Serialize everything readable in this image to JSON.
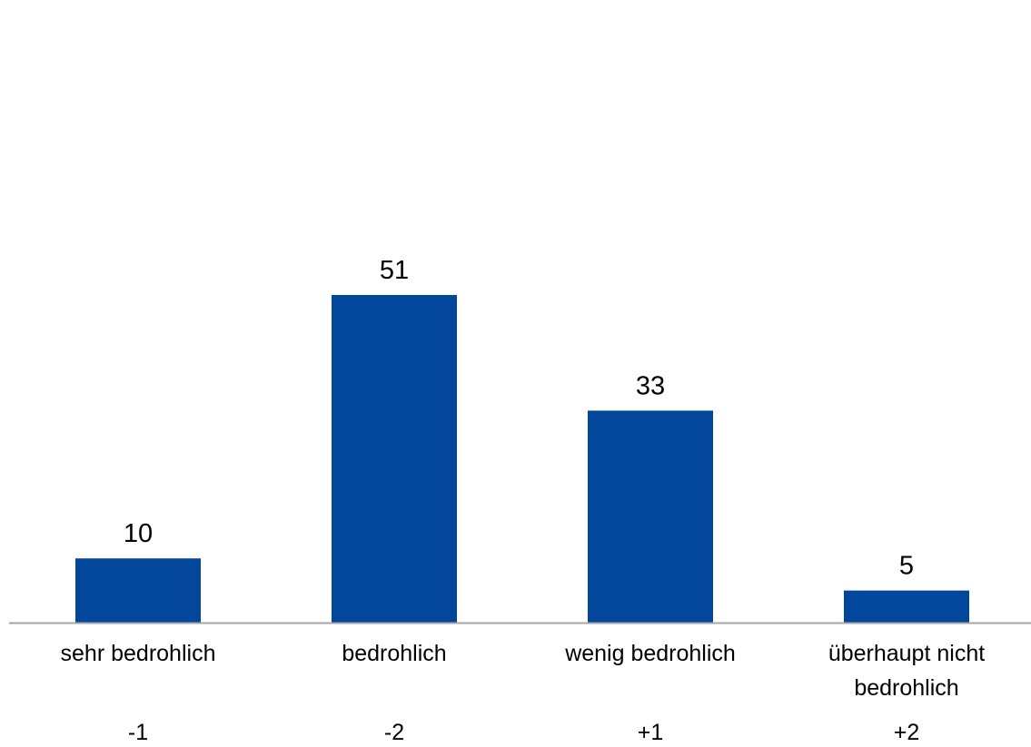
{
  "chart_data": {
    "type": "bar",
    "categories": [
      "sehr bedrohlich",
      "bedrohlich",
      "wenig bedrohlich",
      "überhaupt nicht bedrohlich"
    ],
    "category_lines": [
      [
        "sehr bedrohlich"
      ],
      [
        "bedrohlich"
      ],
      [
        "wenig bedrohlich"
      ],
      [
        "überhaupt nicht",
        "bedrohlich"
      ]
    ],
    "scores": [
      "-1",
      "-2",
      "+1",
      "+2"
    ],
    "values": [
      10,
      51,
      33,
      5
    ],
    "data_labels": [
      "10",
      "51",
      "33",
      "5"
    ],
    "title": "",
    "xlabel": "",
    "ylabel": "",
    "ylim": [
      0,
      51
    ],
    "grid": false,
    "legend": "none",
    "bar_color": "#03479C",
    "axis_color": "#A6A6A6"
  }
}
